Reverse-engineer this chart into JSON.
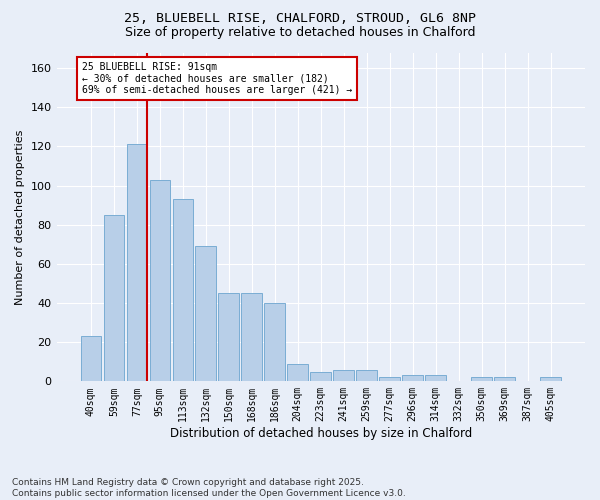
{
  "title_line1": "25, BLUEBELL RISE, CHALFORD, STROUD, GL6 8NP",
  "title_line2": "Size of property relative to detached houses in Chalford",
  "xlabel": "Distribution of detached houses by size in Chalford",
  "ylabel": "Number of detached properties",
  "footer": "Contains HM Land Registry data © Crown copyright and database right 2025.\nContains public sector information licensed under the Open Government Licence v3.0.",
  "categories": [
    "40sqm",
    "59sqm",
    "77sqm",
    "95sqm",
    "113sqm",
    "132sqm",
    "150sqm",
    "168sqm",
    "186sqm",
    "204sqm",
    "223sqm",
    "241sqm",
    "259sqm",
    "277sqm",
    "296sqm",
    "314sqm",
    "332sqm",
    "350sqm",
    "369sqm",
    "387sqm",
    "405sqm"
  ],
  "values": [
    23,
    85,
    121,
    103,
    93,
    69,
    45,
    45,
    40,
    9,
    5,
    6,
    6,
    2,
    3,
    3,
    0,
    2,
    2,
    0,
    2
  ],
  "bar_color": "#b8cfe8",
  "bar_edge_color": "#7aadd4",
  "bg_color": "#e8eef8",
  "grid_color": "#ffffff",
  "ylim": [
    0,
    168
  ],
  "yticks": [
    0,
    20,
    40,
    60,
    80,
    100,
    120,
    140,
    160
  ],
  "vline_x": 2.42,
  "vline_color": "#cc0000",
  "annotation_text": "25 BLUEBELL RISE: 91sqm\n← 30% of detached houses are smaller (182)\n69% of semi-detached houses are larger (421) →",
  "title_fontsize": 9.5,
  "subtitle_fontsize": 9,
  "footer_fontsize": 6.5
}
